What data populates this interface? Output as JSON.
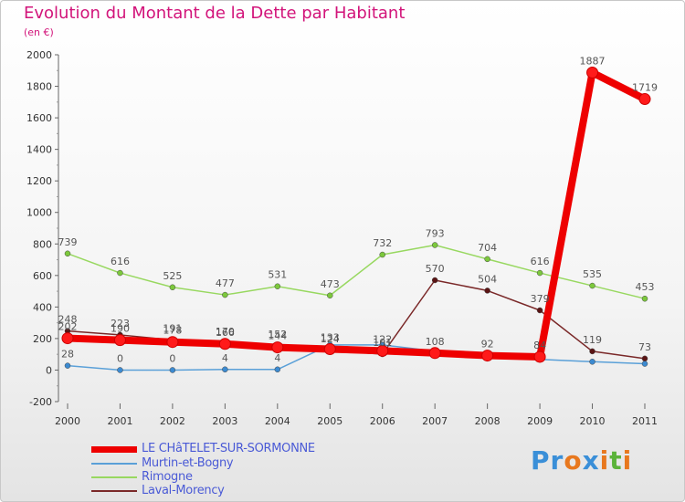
{
  "title": "Evolution du Montant de la Dette par Habitant",
  "subtitle": "(en €)",
  "logo": {
    "text": "Proxiti",
    "colors": [
      "#3a8fd8",
      "#e8781e",
      "#5bb33a"
    ]
  },
  "chart_data": {
    "type": "line",
    "title": "Evolution du Montant de la Dette par Habitant",
    "subtitle": "(en €)",
    "x": [
      "2000",
      "2001",
      "2002",
      "2003",
      "2004",
      "2005",
      "2006",
      "2007",
      "2008",
      "2009",
      "2010",
      "2011"
    ],
    "ylim": [
      -200,
      2000
    ],
    "yticks": [
      -200,
      0,
      200,
      400,
      600,
      800,
      1000,
      1200,
      1400,
      1600,
      1800,
      2000
    ],
    "grid": false,
    "legend_position": "bottom-left",
    "series": [
      {
        "name": "LE CHâTELET-SUR-SORMONNE",
        "color": "#ee0000",
        "values": [
          202,
          190,
          178,
          166,
          144,
          133,
          122,
          108,
          92,
          84,
          1887,
          1719
        ],
        "labels": [
          "202",
          "190",
          "178",
          "166",
          "144",
          "133",
          "122",
          "108",
          "92",
          "84",
          "1887",
          "1719"
        ]
      },
      {
        "name": "Murtin-et-Bogny",
        "color": "#5aa0d8",
        "values": [
          28,
          0,
          0,
          4,
          4,
          160,
          160,
          120,
          101,
          68,
          53,
          40
        ],
        "labels": [
          "28",
          "0",
          "0",
          "4",
          "4",
          "",
          "",
          "",
          "",
          "",
          "",
          ""
        ]
      },
      {
        "name": "Rimogne",
        "color": "#98d860",
        "values": [
          739,
          616,
          525,
          477,
          531,
          473,
          732,
          793,
          704,
          616,
          535,
          453
        ],
        "labels": [
          "739",
          "616",
          "525",
          "477",
          "531",
          "473",
          "732",
          "793",
          "704",
          "616",
          "535",
          "453"
        ]
      },
      {
        "name": "Laval-Morency",
        "color": "#7a2828",
        "values": [
          248,
          223,
          191,
          170,
          152,
          124,
          101,
          570,
          504,
          379,
          119,
          73
        ],
        "labels": [
          "248",
          "223",
          "191",
          "170",
          "152",
          "124",
          "101",
          "570",
          "504",
          "379",
          "119",
          "73"
        ]
      }
    ]
  }
}
